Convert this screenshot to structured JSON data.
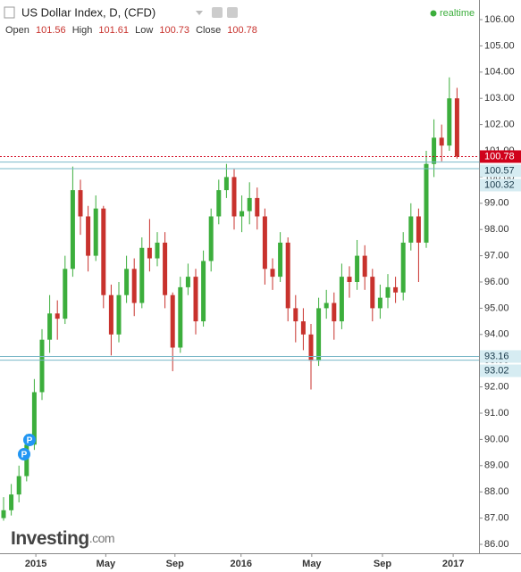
{
  "chart_data": {
    "type": "candlestick",
    "title": "US Dollar Index, D, (CFD)",
    "ohlc_header": {
      "open_label": "Open",
      "open": 101.56,
      "high_label": "High",
      "high": 101.61,
      "low_label": "Low",
      "low": 100.73,
      "close_label": "Close",
      "close": 100.78
    },
    "status": "realtime",
    "logo": {
      "name": "Investing",
      "suffix": ".com"
    },
    "events": [
      {
        "label": "P"
      },
      {
        "label": "P"
      }
    ],
    "up_color": "#3cae3c",
    "down_color": "#c8322d",
    "categories": [
      null,
      null,
      null,
      null,
      null,
      null,
      null,
      null,
      null,
      null,
      null,
      null,
      null,
      null,
      null,
      null,
      null,
      null,
      null,
      null,
      null,
      null,
      null,
      null,
      null,
      null,
      null,
      null,
      null,
      null,
      null,
      null,
      null,
      null,
      null,
      null,
      null,
      null,
      null,
      null,
      null,
      null,
      null,
      null,
      null,
      null,
      null,
      null,
      null,
      null,
      null,
      null,
      null,
      null,
      null,
      null,
      null,
      null,
      null,
      null
    ],
    "open": [
      87.0,
      87.3,
      87.9,
      88.6,
      89.8,
      91.8,
      93.8,
      94.8,
      94.6,
      96.5,
      99.5,
      98.5,
      97.0,
      98.8,
      95.5,
      94.0,
      95.5,
      96.5,
      95.2,
      97.3,
      96.9,
      97.5,
      95.5,
      93.5,
      95.8,
      96.2,
      94.5,
      96.8,
      98.5,
      99.5,
      100.0,
      98.5,
      98.7,
      99.2,
      98.5,
      96.5,
      96.2,
      97.5,
      95.0,
      94.5,
      94.0,
      93.0,
      95.0,
      95.2,
      94.5,
      96.2,
      96.0,
      97.0,
      96.2,
      95.0,
      95.4,
      95.8,
      95.6,
      97.5,
      98.5,
      97.5,
      100.5,
      101.5,
      101.2,
      103.0
    ],
    "high": [
      87.8,
      88.3,
      89.0,
      90.2,
      92.3,
      94.2,
      95.5,
      95.3,
      97.0,
      100.4,
      99.9,
      98.9,
      99.3,
      98.9,
      95.9,
      96.0,
      97.0,
      96.9,
      97.7,
      98.4,
      97.9,
      97.9,
      95.6,
      96.2,
      96.7,
      96.5,
      97.2,
      98.8,
      99.9,
      100.5,
      100.3,
      99.3,
      99.8,
      99.6,
      98.8,
      96.9,
      97.9,
      97.7,
      95.5,
      95.0,
      94.4,
      95.4,
      95.7,
      95.6,
      96.7,
      96.6,
      97.6,
      97.4,
      96.5,
      95.9,
      96.3,
      96.2,
      97.9,
      99.0,
      98.8,
      101.0,
      102.2,
      102.0,
      103.8,
      103.4
    ],
    "low": [
      86.9,
      87.1,
      87.6,
      88.4,
      89.6,
      91.5,
      93.3,
      93.8,
      94.4,
      96.2,
      97.8,
      96.4,
      96.8,
      95.0,
      93.2,
      93.7,
      95.2,
      94.7,
      95.0,
      96.4,
      96.6,
      95.0,
      92.6,
      93.3,
      95.5,
      94.0,
      94.3,
      96.4,
      98.2,
      99.2,
      98.0,
      97.9,
      98.2,
      98.0,
      95.9,
      95.7,
      96.0,
      94.5,
      93.7,
      93.4,
      91.9,
      92.8,
      94.6,
      93.8,
      94.2,
      95.4,
      95.7,
      95.7,
      94.5,
      94.6,
      95.0,
      95.2,
      95.3,
      97.2,
      96.0,
      97.3,
      100.0,
      100.6,
      101.0,
      100.7
    ],
    "close": [
      87.3,
      87.9,
      88.6,
      89.8,
      91.8,
      93.8,
      94.8,
      94.6,
      96.5,
      99.5,
      98.5,
      97.0,
      98.8,
      95.5,
      94.0,
      95.5,
      96.5,
      95.2,
      97.3,
      96.9,
      97.5,
      95.5,
      93.5,
      95.8,
      96.2,
      94.5,
      96.8,
      98.5,
      99.5,
      100.0,
      98.5,
      98.7,
      99.2,
      98.5,
      96.5,
      96.2,
      97.5,
      95.0,
      94.5,
      94.0,
      93.0,
      95.0,
      95.2,
      94.5,
      96.2,
      96.0,
      97.0,
      96.2,
      95.0,
      95.4,
      95.8,
      95.6,
      97.5,
      98.5,
      97.5,
      100.5,
      101.5,
      101.2,
      103.0,
      100.78
    ],
    "levels": [
      {
        "value": 100.78,
        "color": "#d0021b",
        "style": "dotted"
      },
      {
        "value": 100.57,
        "color": "#7ab8c8",
        "style": "solid"
      },
      {
        "value": 100.32,
        "color": "#7ab8c8",
        "style": "solid"
      },
      {
        "value": 93.16,
        "color": "#7ab8c8",
        "style": "solid"
      },
      {
        "value": 93.02,
        "color": "#7ab8c8",
        "style": "solid"
      }
    ],
    "ylim": [
      86,
      106
    ],
    "yticks": [
      {
        "value": 86,
        "label": "86.00"
      },
      {
        "value": 87,
        "label": "87.00"
      },
      {
        "value": 88,
        "label": "88.00"
      },
      {
        "value": 89,
        "label": "89.00"
      },
      {
        "value": 90,
        "label": "90.00"
      },
      {
        "value": 91,
        "label": "91.00"
      },
      {
        "value": 92,
        "label": "92.00"
      },
      {
        "value": 93,
        "label": "93.00"
      },
      {
        "value": 94,
        "label": "94.00"
      },
      {
        "value": 95,
        "label": "95.00"
      },
      {
        "value": 96,
        "label": "96.00"
      },
      {
        "value": 97,
        "label": "97.00"
      },
      {
        "value": 98,
        "label": "98.00"
      },
      {
        "value": 99,
        "label": "99.00"
      },
      {
        "value": 100,
        "label": "100.00"
      },
      {
        "value": 101,
        "label": "101.00"
      },
      {
        "value": 102,
        "label": "102.00"
      },
      {
        "value": 103,
        "label": "103.00"
      },
      {
        "value": 104,
        "label": "104.00"
      },
      {
        "value": 105,
        "label": "105.00"
      },
      {
        "value": 106,
        "label": "106.00"
      }
    ],
    "xticks": [
      {
        "value": 4.2,
        "label": "2015"
      },
      {
        "value": 13.3,
        "label": "May"
      },
      {
        "value": 22.3,
        "label": "Sep"
      },
      {
        "value": 30.9,
        "label": "2016"
      },
      {
        "value": 40.1,
        "label": "May"
      },
      {
        "value": 49.3,
        "label": "Sep"
      },
      {
        "value": 58.5,
        "label": "2017"
      }
    ]
  }
}
